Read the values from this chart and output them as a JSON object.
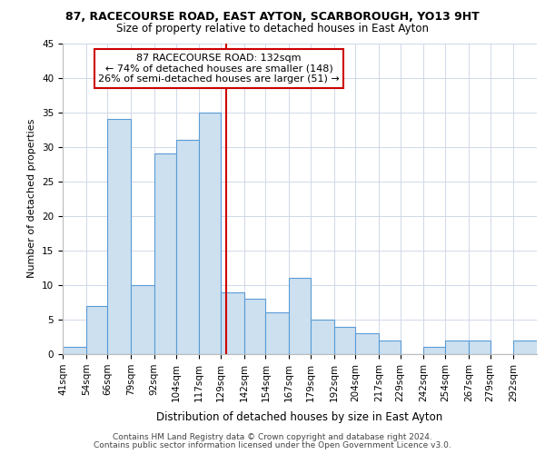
{
  "title1": "87, RACECOURSE ROAD, EAST AYTON, SCARBOROUGH, YO13 9HT",
  "title2": "Size of property relative to detached houses in East Ayton",
  "xlabel": "Distribution of detached houses by size in East Ayton",
  "ylabel": "Number of detached properties",
  "bin_labels": [
    "41sqm",
    "54sqm",
    "66sqm",
    "79sqm",
    "92sqm",
    "104sqm",
    "117sqm",
    "129sqm",
    "142sqm",
    "154sqm",
    "167sqm",
    "179sqm",
    "192sqm",
    "204sqm",
    "217sqm",
    "229sqm",
    "242sqm",
    "254sqm",
    "267sqm",
    "279sqm",
    "292sqm"
  ],
  "bar_values": [
    1,
    7,
    34,
    10,
    29,
    31,
    35,
    9,
    8,
    6,
    11,
    5,
    4,
    3,
    2,
    0,
    1,
    2,
    2,
    0,
    2
  ],
  "bar_color": "#cce0f0",
  "bar_edge_color": "#5b9bd5",
  "vline_x": 132,
  "bin_edges": [
    41,
    54,
    66,
    79,
    92,
    104,
    117,
    129,
    142,
    154,
    167,
    179,
    192,
    204,
    217,
    229,
    242,
    254,
    267,
    279,
    292,
    305
  ],
  "annotation_line1": "87 RACECOURSE ROAD: 132sqm",
  "annotation_line2": "← 74% of detached houses are smaller (148)",
  "annotation_line3": "26% of semi-detached houses are larger (51) →",
  "annotation_box_facecolor": "#ffffff",
  "annotation_box_edgecolor": "#cc0000",
  "vline_color": "#cc0000",
  "ylim": [
    0,
    45
  ],
  "yticks": [
    0,
    5,
    10,
    15,
    20,
    25,
    30,
    35,
    40,
    45
  ],
  "footer1": "Contains HM Land Registry data © Crown copyright and database right 2024.",
  "footer2": "Contains public sector information licensed under the Open Government Licence v3.0.",
  "background_color": "#ffffff",
  "grid_color": "#d0d8e8",
  "title1_fontsize": 9.0,
  "title2_fontsize": 8.5,
  "ylabel_fontsize": 8.0,
  "xlabel_fontsize": 8.5,
  "tick_fontsize": 7.5,
  "annotation_fontsize": 8.0,
  "footer_fontsize": 6.5
}
